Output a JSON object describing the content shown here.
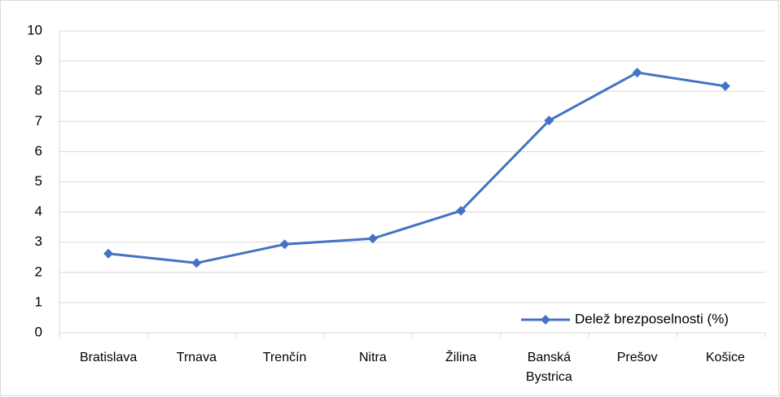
{
  "chart_data": {
    "type": "line",
    "categories": [
      "Bratislava",
      "Trnava",
      "Trenčín",
      "Nitra",
      "Žilina",
      "Banská Bystrica",
      "Prešov",
      "Košice"
    ],
    "series": [
      {
        "name": "Delež brezposelnosti (%)",
        "color": "#4472c4",
        "values": [
          2.62,
          2.31,
          2.93,
          3.12,
          4.04,
          7.03,
          8.62,
          8.17
        ]
      }
    ],
    "ylim": [
      0,
      10
    ],
    "yticks": [
      0,
      1,
      2,
      3,
      4,
      5,
      6,
      7,
      8,
      9,
      10
    ],
    "grid": true,
    "legend": "bottom-right"
  }
}
